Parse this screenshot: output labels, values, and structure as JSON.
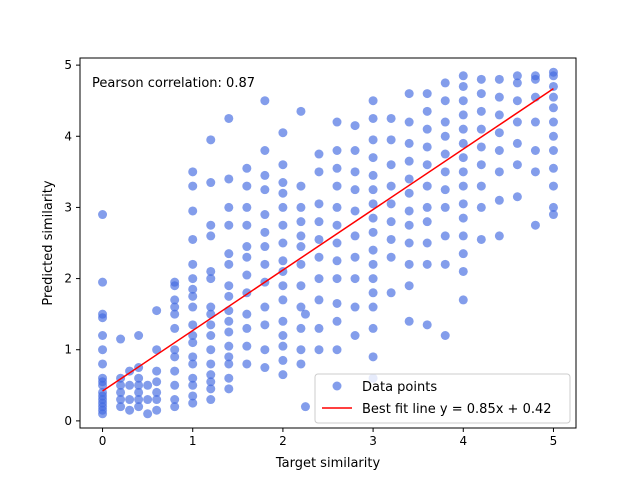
{
  "chart_data": {
    "type": "scatter",
    "title": "",
    "xlabel": "Target similarity",
    "ylabel": "Predicted similarity",
    "xlim": [
      -0.25,
      5.25
    ],
    "ylim": [
      -0.1,
      5.1
    ],
    "xticks": [
      0,
      1,
      2,
      3,
      4,
      5
    ],
    "yticks": [
      0,
      1,
      2,
      3,
      4,
      5
    ],
    "grid": false,
    "legend_position": "lower-right",
    "annotation": "Pearson correlation: 0.87",
    "series": [
      {
        "name": "Data points",
        "kind": "scatter",
        "color": "#4169e1",
        "points": [
          [
            0,
            0.1
          ],
          [
            0,
            0.15
          ],
          [
            0,
            0.2
          ],
          [
            0,
            0.25
          ],
          [
            0,
            0.3
          ],
          [
            0,
            0.35
          ],
          [
            0,
            0.4
          ],
          [
            0,
            0.5
          ],
          [
            0,
            0.55
          ],
          [
            0,
            0.6
          ],
          [
            0,
            0.8
          ],
          [
            0,
            1.0
          ],
          [
            0,
            1.2
          ],
          [
            0,
            1.45
          ],
          [
            0,
            1.5
          ],
          [
            0,
            1.95
          ],
          [
            0,
            2.9
          ],
          [
            0.2,
            0.2
          ],
          [
            0.2,
            0.3
          ],
          [
            0.2,
            0.4
          ],
          [
            0.2,
            0.5
          ],
          [
            0.2,
            0.6
          ],
          [
            0.2,
            1.15
          ],
          [
            0.3,
            0.15
          ],
          [
            0.3,
            0.3
          ],
          [
            0.3,
            0.5
          ],
          [
            0.3,
            0.7
          ],
          [
            0.4,
            0.2
          ],
          [
            0.4,
            0.3
          ],
          [
            0.4,
            0.4
          ],
          [
            0.4,
            0.5
          ],
          [
            0.4,
            0.6
          ],
          [
            0.4,
            0.75
          ],
          [
            0.4,
            1.2
          ],
          [
            0.5,
            0.1
          ],
          [
            0.5,
            0.3
          ],
          [
            0.5,
            0.5
          ],
          [
            0.6,
            0.15
          ],
          [
            0.6,
            0.3
          ],
          [
            0.6,
            0.4
          ],
          [
            0.6,
            0.55
          ],
          [
            0.6,
            0.7
          ],
          [
            0.6,
            1.0
          ],
          [
            0.6,
            1.55
          ],
          [
            0.8,
            0.2
          ],
          [
            0.8,
            0.3
          ],
          [
            0.8,
            0.5
          ],
          [
            0.8,
            0.7
          ],
          [
            0.8,
            0.9
          ],
          [
            0.8,
            1.0
          ],
          [
            0.8,
            1.3
          ],
          [
            0.8,
            1.5
          ],
          [
            0.8,
            1.6
          ],
          [
            0.8,
            1.7
          ],
          [
            0.8,
            1.9
          ],
          [
            0.8,
            1.95
          ],
          [
            1.0,
            0.25
          ],
          [
            1.0,
            0.35
          ],
          [
            1.0,
            0.5
          ],
          [
            1.0,
            0.6
          ],
          [
            1.0,
            0.8
          ],
          [
            1.0,
            0.9
          ],
          [
            1.0,
            1.1
          ],
          [
            1.0,
            1.2
          ],
          [
            1.0,
            1.35
          ],
          [
            1.0,
            1.6
          ],
          [
            1.0,
            1.75
          ],
          [
            1.0,
            1.85
          ],
          [
            1.0,
            2.0
          ],
          [
            1.0,
            2.2
          ],
          [
            1.0,
            2.55
          ],
          [
            1.0,
            2.95
          ],
          [
            1.0,
            3.3
          ],
          [
            1.0,
            3.5
          ],
          [
            1.2,
            0.3
          ],
          [
            1.2,
            0.45
          ],
          [
            1.2,
            0.55
          ],
          [
            1.2,
            0.65
          ],
          [
            1.2,
            0.8
          ],
          [
            1.2,
            1.0
          ],
          [
            1.2,
            1.2
          ],
          [
            1.2,
            1.35
          ],
          [
            1.2,
            1.5
          ],
          [
            1.2,
            1.6
          ],
          [
            1.2,
            2.0
          ],
          [
            1.2,
            2.1
          ],
          [
            1.2,
            2.6
          ],
          [
            1.2,
            2.75
          ],
          [
            1.2,
            3.35
          ],
          [
            1.2,
            3.95
          ],
          [
            1.4,
            0.45
          ],
          [
            1.4,
            0.6
          ],
          [
            1.4,
            0.8
          ],
          [
            1.4,
            0.9
          ],
          [
            1.4,
            1.05
          ],
          [
            1.4,
            1.25
          ],
          [
            1.4,
            1.4
          ],
          [
            1.4,
            1.55
          ],
          [
            1.4,
            1.75
          ],
          [
            1.4,
            1.9
          ],
          [
            1.4,
            2.2
          ],
          [
            1.4,
            2.35
          ],
          [
            1.4,
            2.75
          ],
          [
            1.4,
            3.0
          ],
          [
            1.4,
            3.4
          ],
          [
            1.4,
            4.25
          ],
          [
            1.6,
            0.8
          ],
          [
            1.6,
            1.05
          ],
          [
            1.6,
            1.3
          ],
          [
            1.6,
            1.5
          ],
          [
            1.6,
            1.8
          ],
          [
            1.6,
            2.05
          ],
          [
            1.6,
            2.3
          ],
          [
            1.6,
            2.45
          ],
          [
            1.6,
            2.75
          ],
          [
            1.6,
            3.0
          ],
          [
            1.6,
            3.3
          ],
          [
            1.6,
            3.55
          ],
          [
            1.8,
            0.75
          ],
          [
            1.8,
            1.0
          ],
          [
            1.8,
            1.35
          ],
          [
            1.8,
            1.6
          ],
          [
            1.8,
            1.95
          ],
          [
            1.8,
            2.2
          ],
          [
            1.8,
            2.45
          ],
          [
            1.8,
            2.65
          ],
          [
            1.8,
            2.9
          ],
          [
            1.8,
            3.25
          ],
          [
            1.8,
            3.45
          ],
          [
            1.8,
            3.8
          ],
          [
            1.8,
            4.5
          ],
          [
            2.0,
            0.65
          ],
          [
            2.0,
            0.85
          ],
          [
            2.0,
            1.05
          ],
          [
            2.0,
            1.2
          ],
          [
            2.0,
            1.4
          ],
          [
            2.0,
            1.7
          ],
          [
            2.0,
            1.9
          ],
          [
            2.0,
            2.1
          ],
          [
            2.0,
            2.25
          ],
          [
            2.0,
            2.5
          ],
          [
            2.0,
            2.75
          ],
          [
            2.0,
            3.0
          ],
          [
            2.0,
            3.2
          ],
          [
            2.0,
            3.35
          ],
          [
            2.0,
            3.6
          ],
          [
            2.0,
            4.05
          ],
          [
            2.2,
            0.8
          ],
          [
            2.2,
            1.0
          ],
          [
            2.2,
            1.3
          ],
          [
            2.2,
            1.6
          ],
          [
            2.2,
            1.9
          ],
          [
            2.2,
            2.2
          ],
          [
            2.2,
            2.45
          ],
          [
            2.2,
            2.6
          ],
          [
            2.2,
            2.8
          ],
          [
            2.2,
            3.0
          ],
          [
            2.2,
            3.3
          ],
          [
            2.2,
            4.35
          ],
          [
            2.25,
            0.2
          ],
          [
            2.25,
            1.5
          ],
          [
            2.4,
            1.0
          ],
          [
            2.4,
            1.3
          ],
          [
            2.4,
            1.7
          ],
          [
            2.4,
            2.0
          ],
          [
            2.4,
            2.3
          ],
          [
            2.4,
            2.55
          ],
          [
            2.4,
            2.8
          ],
          [
            2.4,
            3.05
          ],
          [
            2.4,
            3.5
          ],
          [
            2.4,
            3.75
          ],
          [
            2.6,
            1.0
          ],
          [
            2.6,
            1.4
          ],
          [
            2.6,
            1.65
          ],
          [
            2.6,
            2.0
          ],
          [
            2.6,
            2.25
          ],
          [
            2.6,
            2.5
          ],
          [
            2.6,
            2.75
          ],
          [
            2.6,
            3.0
          ],
          [
            2.6,
            3.3
          ],
          [
            2.6,
            3.55
          ],
          [
            2.6,
            3.8
          ],
          [
            2.6,
            4.2
          ],
          [
            2.8,
            1.2
          ],
          [
            2.8,
            1.6
          ],
          [
            2.8,
            2.0
          ],
          [
            2.8,
            2.3
          ],
          [
            2.8,
            2.6
          ],
          [
            2.8,
            2.95
          ],
          [
            2.8,
            3.25
          ],
          [
            2.8,
            3.5
          ],
          [
            2.8,
            3.8
          ],
          [
            2.8,
            4.15
          ],
          [
            3.0,
            0.6
          ],
          [
            3.0,
            0.9
          ],
          [
            3.0,
            1.3
          ],
          [
            3.0,
            1.6
          ],
          [
            3.0,
            1.8
          ],
          [
            3.0,
            2.0
          ],
          [
            3.0,
            2.2
          ],
          [
            3.0,
            2.4
          ],
          [
            3.0,
            2.65
          ],
          [
            3.0,
            2.85
          ],
          [
            3.0,
            3.05
          ],
          [
            3.0,
            3.25
          ],
          [
            3.0,
            3.45
          ],
          [
            3.0,
            3.7
          ],
          [
            3.0,
            3.95
          ],
          [
            3.0,
            4.25
          ],
          [
            3.0,
            4.5
          ],
          [
            3.2,
            1.8
          ],
          [
            3.2,
            2.3
          ],
          [
            3.2,
            2.55
          ],
          [
            3.2,
            2.8
          ],
          [
            3.2,
            3.05
          ],
          [
            3.2,
            3.3
          ],
          [
            3.2,
            3.6
          ],
          [
            3.2,
            3.95
          ],
          [
            3.2,
            4.25
          ],
          [
            3.4,
            1.4
          ],
          [
            3.4,
            1.9
          ],
          [
            3.4,
            2.2
          ],
          [
            3.4,
            2.5
          ],
          [
            3.4,
            2.75
          ],
          [
            3.4,
            2.95
          ],
          [
            3.4,
            3.2
          ],
          [
            3.4,
            3.4
          ],
          [
            3.4,
            3.65
          ],
          [
            3.4,
            3.9
          ],
          [
            3.4,
            4.2
          ],
          [
            3.4,
            4.6
          ],
          [
            3.6,
            1.35
          ],
          [
            3.6,
            2.2
          ],
          [
            3.6,
            2.5
          ],
          [
            3.6,
            2.8
          ],
          [
            3.6,
            3.0
          ],
          [
            3.6,
            3.3
          ],
          [
            3.6,
            3.6
          ],
          [
            3.6,
            3.85
          ],
          [
            3.6,
            4.1
          ],
          [
            3.6,
            4.35
          ],
          [
            3.6,
            4.6
          ],
          [
            3.8,
            1.2
          ],
          [
            3.8,
            2.2
          ],
          [
            3.8,
            2.6
          ],
          [
            3.8,
            3.0
          ],
          [
            3.8,
            3.25
          ],
          [
            3.8,
            3.5
          ],
          [
            3.8,
            3.75
          ],
          [
            3.8,
            4.0
          ],
          [
            3.8,
            4.2
          ],
          [
            3.8,
            4.5
          ],
          [
            3.8,
            4.75
          ],
          [
            4.0,
            1.7
          ],
          [
            4.0,
            2.1
          ],
          [
            4.0,
            2.35
          ],
          [
            4.0,
            2.6
          ],
          [
            4.0,
            2.85
          ],
          [
            4.0,
            3.05
          ],
          [
            4.0,
            3.3
          ],
          [
            4.0,
            3.5
          ],
          [
            4.0,
            3.7
          ],
          [
            4.0,
            3.9
          ],
          [
            4.0,
            4.1
          ],
          [
            4.0,
            4.3
          ],
          [
            4.0,
            4.5
          ],
          [
            4.0,
            4.7
          ],
          [
            4.0,
            4.85
          ],
          [
            4.2,
            2.55
          ],
          [
            4.2,
            3.0
          ],
          [
            4.2,
            3.3
          ],
          [
            4.2,
            3.6
          ],
          [
            4.2,
            3.85
          ],
          [
            4.2,
            4.1
          ],
          [
            4.2,
            4.35
          ],
          [
            4.2,
            4.6
          ],
          [
            4.2,
            4.8
          ],
          [
            4.4,
            2.6
          ],
          [
            4.4,
            3.1
          ],
          [
            4.4,
            3.5
          ],
          [
            4.4,
            3.8
          ],
          [
            4.4,
            4.05
          ],
          [
            4.4,
            4.3
          ],
          [
            4.4,
            4.55
          ],
          [
            4.4,
            4.8
          ],
          [
            4.6,
            3.15
          ],
          [
            4.6,
            3.6
          ],
          [
            4.6,
            3.9
          ],
          [
            4.6,
            4.2
          ],
          [
            4.6,
            4.5
          ],
          [
            4.6,
            4.75
          ],
          [
            4.6,
            4.85
          ],
          [
            4.8,
            2.75
          ],
          [
            4.8,
            3.5
          ],
          [
            4.8,
            3.8
          ],
          [
            4.8,
            4.2
          ],
          [
            4.8,
            4.55
          ],
          [
            4.8,
            4.8
          ],
          [
            4.8,
            4.85
          ],
          [
            5.0,
            2.9
          ],
          [
            5.0,
            3.0
          ],
          [
            5.0,
            3.3
          ],
          [
            5.0,
            3.55
          ],
          [
            5.0,
            3.8
          ],
          [
            5.0,
            4.0
          ],
          [
            5.0,
            4.2
          ],
          [
            5.0,
            4.4
          ],
          [
            5.0,
            4.55
          ],
          [
            5.0,
            4.7
          ],
          [
            5.0,
            4.85
          ],
          [
            5.0,
            4.9
          ]
        ]
      },
      {
        "name": "Best fit line y = 0.85x + 0.42",
        "kind": "line",
        "color": "#ff0000",
        "x": [
          0,
          5
        ],
        "y": [
          0.42,
          4.67
        ]
      }
    ]
  }
}
